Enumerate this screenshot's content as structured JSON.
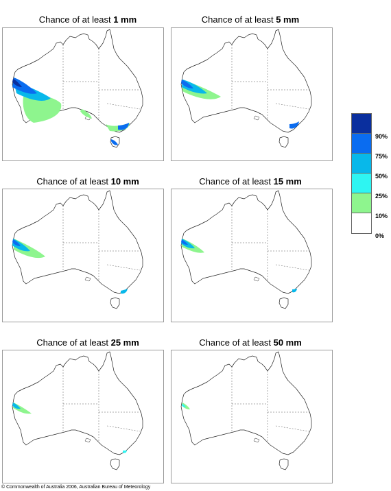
{
  "panels": [
    {
      "prefix": "Chance of at least",
      "amount": "1 mm"
    },
    {
      "prefix": "Chance of at least",
      "amount": "5 mm"
    },
    {
      "prefix": "Chance of at least",
      "amount": "10 mm"
    },
    {
      "prefix": "Chance of at least",
      "amount": "15 mm"
    },
    {
      "prefix": "Chance of at least",
      "amount": "25 mm"
    },
    {
      "prefix": "Chance of at least",
      "amount": "50 mm"
    }
  ],
  "legend": {
    "labels": [
      "90%",
      "75%",
      "50%",
      "25%",
      "10%",
      "0%"
    ],
    "colors": [
      "#0a2f9e",
      "#0a6cf0",
      "#08b8ea",
      "#2ef5f2",
      "#8ef58e",
      "#ffffff"
    ]
  },
  "copyright": "© Commonwealth of Australia 2006, Australian Bureau of Meteorology"
}
